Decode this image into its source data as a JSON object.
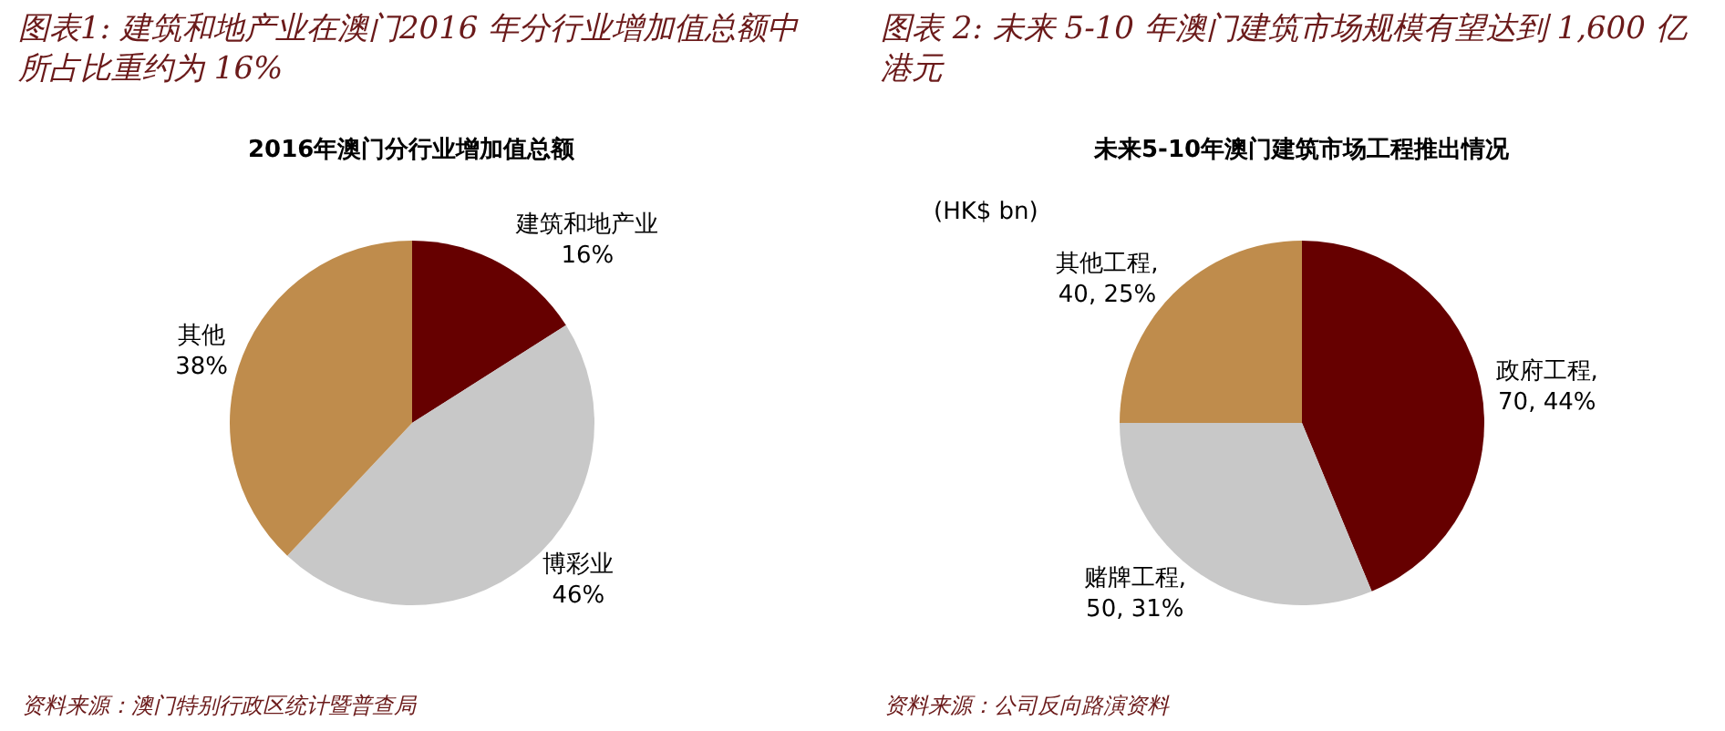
{
  "chart_data": [
    {
      "type": "pie",
      "title": "图表1: 建筑和地产业在澳门2016 年分行业增加值总额中所占比重约为 16%",
      "subtitle": "2016年澳门分行业增加值总额",
      "categories": [
        "建筑和地产业",
        "博彩业",
        "其他"
      ],
      "values": [
        16,
        46,
        38
      ],
      "colors": [
        "#660000",
        "#c8c8c8",
        "#bf8c4c"
      ],
      "value_labels": [
        "16%",
        "46%",
        "38%"
      ],
      "annotations": [
        "资料来源：澳门特别行政区统计暨普查局"
      ]
    },
    {
      "type": "pie",
      "title": "图表 2: 未来 5-10 年澳门建筑市场规模有望达到 1,600 亿港元",
      "subtitle": "未来5-10年澳门建筑市场工程推出情况",
      "categories": [
        "政府工程",
        "赌牌工程",
        "其他工程"
      ],
      "values": [
        70,
        50,
        40
      ],
      "colors": [
        "#660000",
        "#c8c8c8",
        "#bf8c4c"
      ],
      "value_labels": [
        ",\n70, 44%",
        ",\n50, 31%",
        ",\n40, 25%"
      ],
      "annotations": [
        "(HK$ bn)",
        "资料来源：公司反向路演资料"
      ]
    }
  ]
}
